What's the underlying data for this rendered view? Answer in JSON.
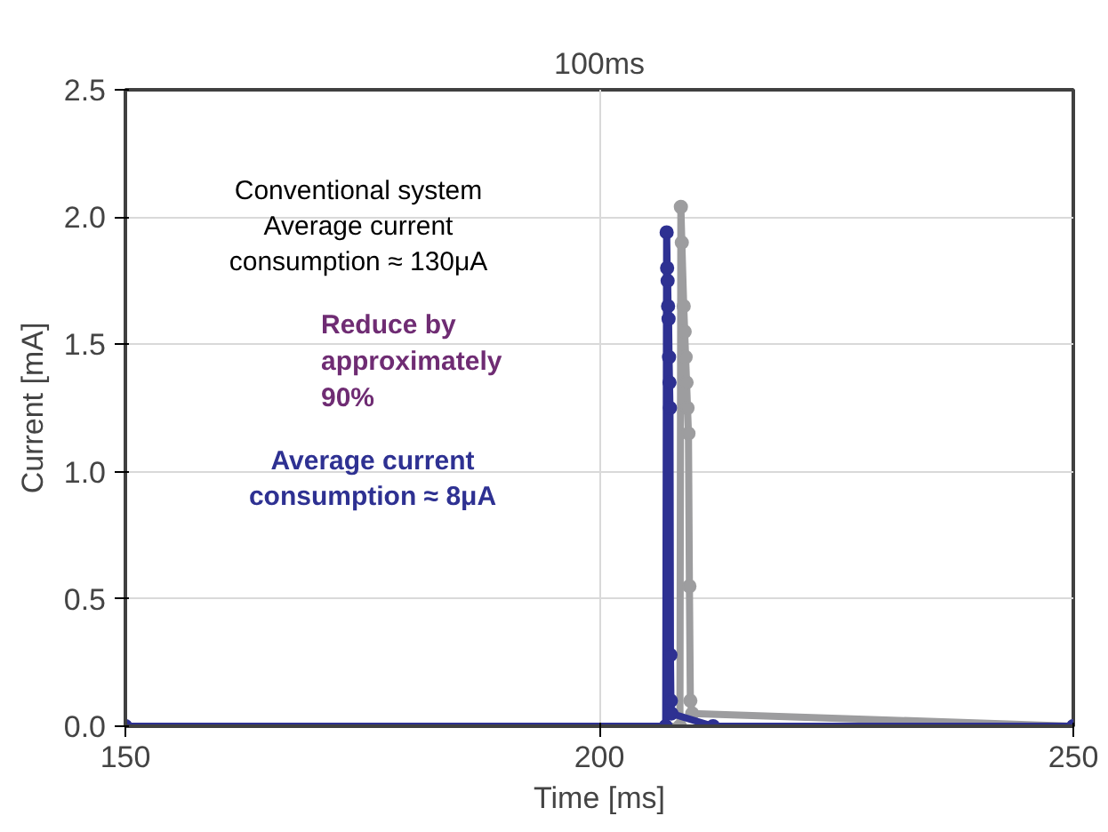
{
  "chart_data": {
    "type": "line",
    "xlabel": "Time [ms]",
    "ylabel": "Current [mA]",
    "xlim": [
      150,
      250
    ],
    "xticks": [
      150,
      200,
      250
    ],
    "ylim": [
      0,
      2.5
    ],
    "yticks": [
      {
        "value": 0,
        "label": "0.0"
      },
      {
        "value": 0.5,
        "label": "0.5"
      },
      {
        "value": 1,
        "label": "1.0"
      },
      {
        "value": 1.5,
        "label": "1.5"
      },
      {
        "value": 2,
        "label": "2.0"
      },
      {
        "value": 2.5,
        "label": "2.5"
      }
    ],
    "grid": true,
    "marker": "circle",
    "line_style": "solid",
    "series": [
      {
        "color": "#9d9d9f",
        "x": [
          150,
          208.5,
          208.6,
          208.7,
          208.9,
          209.0,
          209.1,
          209.2,
          209.3,
          209.4,
          209.5,
          209.6,
          209.8,
          250
        ],
        "values": [
          0,
          0,
          2.04,
          1.9,
          1.65,
          1.55,
          1.45,
          1.35,
          1.25,
          1.15,
          0.55,
          0.1,
          0.05,
          0
        ]
      },
      {
        "color": "#2e3192",
        "x": [
          150,
          207.0,
          207.1,
          207.15,
          207.2,
          207.25,
          207.3,
          207.35,
          207.4,
          207.45,
          207.5,
          207.55,
          207.6,
          212,
          250
        ],
        "values": [
          0,
          0,
          1.94,
          1.8,
          1.75,
          1.65,
          1.6,
          1.45,
          1.35,
          1.25,
          0.28,
          0.1,
          0.05,
          0,
          0
        ]
      }
    ],
    "annotations": [
      "100ms",
      "Conventional system",
      "Average current consumption ≈ 130μA",
      "Reduce by approximately 90%",
      "Average current consumption ≈ 8μA"
    ]
  }
}
